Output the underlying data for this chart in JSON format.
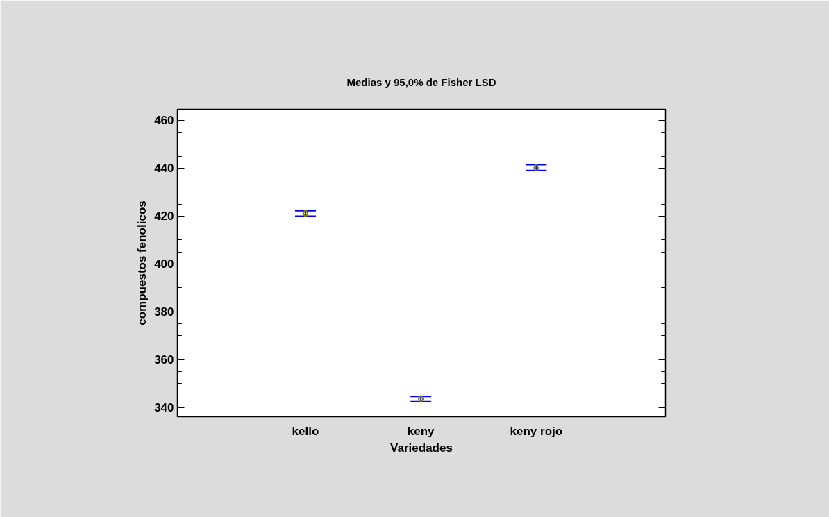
{
  "chart_data": {
    "type": "scatter",
    "title": "Medias y 95,0% de Fisher LSD",
    "xlabel": "Variedades",
    "ylabel": "compuestos fenolicos",
    "categories": [
      "kello",
      "keny",
      "keny rojo"
    ],
    "series": [
      {
        "color": "#808000",
        "values": [
          421.1,
          343.6,
          440.2
        ],
        "errors": [
          1.1,
          1.1,
          1.2
        ]
      }
    ],
    "ylim": [
      336.2,
      464.6
    ],
    "yticks": [
      340,
      360,
      380,
      400,
      420,
      440,
      460
    ],
    "marker": "diamond"
  }
}
